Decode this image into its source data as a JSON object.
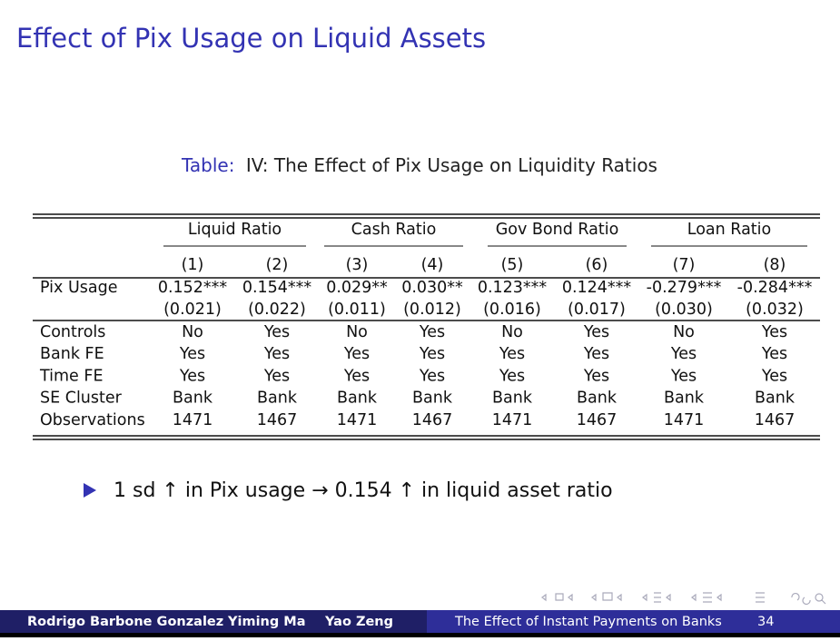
{
  "title": "Effect of Pix Usage on Liquid Assets",
  "table": {
    "caption_label": "Table:",
    "caption": "IV: The Effect of Pix Usage on Liquidity Ratios",
    "groups": [
      "Liquid Ratio",
      "Cash Ratio",
      "Gov Bond Ratio",
      "Loan Ratio"
    ],
    "columns": [
      "(1)",
      "(2)",
      "(3)",
      "(4)",
      "(5)",
      "(6)",
      "(7)",
      "(8)"
    ],
    "coef_row": {
      "label": "Pix Usage",
      "values": [
        "0.152***",
        "0.154***",
        "0.029**",
        "0.030**",
        "0.123***",
        "0.124***",
        "-0.279***",
        "-0.284***"
      ],
      "se": [
        "(0.021)",
        "(0.022)",
        "(0.011)",
        "(0.012)",
        "(0.016)",
        "(0.017)",
        "(0.030)",
        "(0.032)"
      ]
    },
    "rows": [
      {
        "label": "Controls",
        "values": [
          "No",
          "Yes",
          "No",
          "Yes",
          "No",
          "Yes",
          "No",
          "Yes"
        ]
      },
      {
        "label": "Bank FE",
        "values": [
          "Yes",
          "Yes",
          "Yes",
          "Yes",
          "Yes",
          "Yes",
          "Yes",
          "Yes"
        ]
      },
      {
        "label": "Time FE",
        "values": [
          "Yes",
          "Yes",
          "Yes",
          "Yes",
          "Yes",
          "Yes",
          "Yes",
          "Yes"
        ]
      },
      {
        "label": "SE Cluster",
        "values": [
          "Bank",
          "Bank",
          "Bank",
          "Bank",
          "Bank",
          "Bank",
          "Bank",
          "Bank"
        ]
      },
      {
        "label": "Observations",
        "values": [
          "1471",
          "1467",
          "1471",
          "1467",
          "1471",
          "1467",
          "1471",
          "1467"
        ]
      }
    ]
  },
  "bullet": "1 sd ↑ in Pix usage → 0.154 ↑ in liquid asset ratio",
  "footer": {
    "authors": [
      "Rodrigo Barbone Gonzalez",
      "Yiming Ma",
      "Yao Zeng"
    ],
    "title": "The Effect of Instant Payments on Banks",
    "page": "34"
  }
}
